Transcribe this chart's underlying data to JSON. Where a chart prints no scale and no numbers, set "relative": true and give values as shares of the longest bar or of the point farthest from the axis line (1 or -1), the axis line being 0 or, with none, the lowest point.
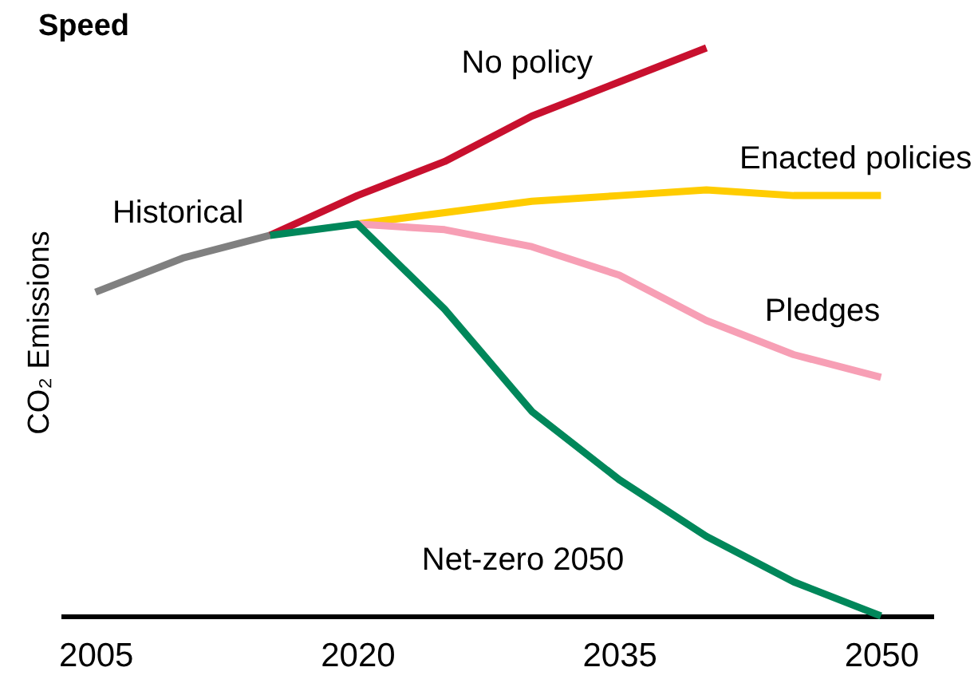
{
  "chart_data": {
    "type": "line",
    "title": "Speed",
    "ylabel": "CO₂ Emissions",
    "relative": true,
    "xlim": [
      2003,
      2053
    ],
    "xticks": [
      2005,
      2020,
      2035,
      2050
    ],
    "grid": false,
    "marker": "none",
    "line_style": "solid",
    "series": [
      {
        "name": "Historical",
        "color": "#808080",
        "x": [
          2005,
          2010,
          2015
        ],
        "values": [
          0.57,
          0.63,
          0.67
        ]
      },
      {
        "name": "No policy",
        "color": "#c8102e",
        "x": [
          2015,
          2020,
          2025,
          2030,
          2035,
          2040
        ],
        "values": [
          0.67,
          0.74,
          0.8,
          0.88,
          0.94,
          1
        ]
      },
      {
        "name": "Enacted policies",
        "color": "#ffcc00",
        "x": [
          2020,
          2025,
          2030,
          2035,
          2040,
          2045,
          2050
        ],
        "values": [
          0.69,
          0.71,
          0.73,
          0.74,
          0.75,
          0.74,
          0.74
        ]
      },
      {
        "name": "Pledges",
        "color": "#f79fb5",
        "x": [
          2020,
          2025,
          2030,
          2035,
          2040,
          2045,
          2050
        ],
        "values": [
          0.69,
          0.68,
          0.65,
          0.6,
          0.52,
          0.46,
          0.42
        ]
      },
      {
        "name": "Net-zero 2050",
        "color": "#00875a",
        "x": [
          2015,
          2020,
          2025,
          2030,
          2035,
          2040,
          2045,
          2050
        ],
        "values": [
          0.67,
          0.69,
          0.54,
          0.36,
          0.24,
          0.14,
          0.06,
          0
        ]
      }
    ]
  }
}
